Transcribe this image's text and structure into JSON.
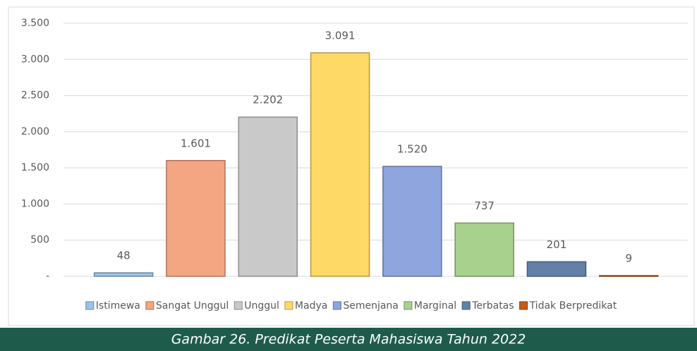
{
  "chart_data": {
    "type": "bar",
    "series": [
      {
        "name": "Istimewa",
        "color": "#9dc3e6",
        "values": [
          48
        ]
      },
      {
        "name": "Sangat Unggul",
        "color": "#f4a582",
        "values": [
          1601
        ],
        "value_labels": [
          "1.601"
        ]
      },
      {
        "name": "Unggul",
        "color": "#c9c9c9",
        "values": [
          2202
        ],
        "value_labels": [
          "2.202"
        ]
      },
      {
        "name": "Madya",
        "color": "#ffd966",
        "values": [
          3091
        ],
        "value_labels": [
          "3.091"
        ]
      },
      {
        "name": "Semenjana",
        "color": "#8ea5de",
        "values": [
          1520
        ],
        "value_labels": [
          "1.520"
        ]
      },
      {
        "name": "Marginal",
        "color": "#a9d18e",
        "values": [
          737
        ]
      },
      {
        "name": "Terbatas",
        "color": "#6381a8",
        "values": [
          201
        ]
      },
      {
        "name": "Tidak Berpredikat",
        "color": "#c55a11",
        "values": [
          9
        ]
      }
    ],
    "ylim": [
      0,
      3500
    ],
    "yticks": [
      {
        "value": 0,
        "label": "-"
      },
      500,
      {
        "value": 1000,
        "label": "1.000"
      },
      {
        "value": 1500,
        "label": "1.500"
      },
      {
        "value": 2000,
        "label": "2.000"
      },
      {
        "value": 2500,
        "label": "2.500"
      },
      {
        "value": 3000,
        "label": "3.000"
      },
      {
        "value": 3500,
        "label": "3.500"
      }
    ],
    "grid": true,
    "legend": "bottom",
    "caption": "Gambar 26. Predikat Peserta Mahasiswa Tahun 2022"
  }
}
